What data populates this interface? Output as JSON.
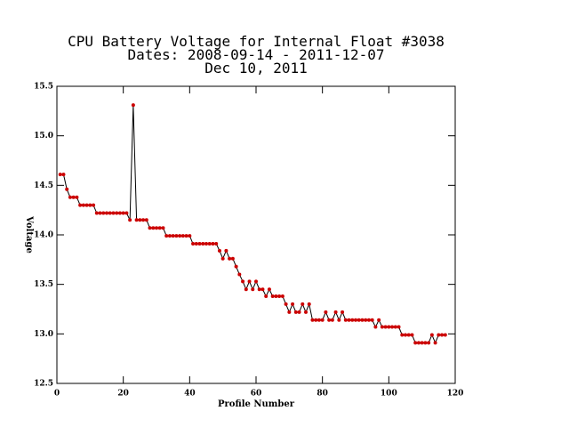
{
  "chart_data": {
    "type": "line",
    "title": [
      "CPU Battery Voltage for Internal Float #3038",
      "Dates:  2008-09-14 -  2011-12-07",
      "Dec 10, 2011"
    ],
    "x_label": "Profile Number",
    "y_label": "Voltage",
    "x": [
      1,
      2,
      3,
      4,
      5,
      6,
      7,
      8,
      9,
      10,
      11,
      12,
      13,
      14,
      15,
      16,
      17,
      18,
      19,
      20,
      21,
      22,
      23,
      24,
      25,
      26,
      27,
      28,
      29,
      30,
      31,
      32,
      33,
      34,
      35,
      36,
      37,
      38,
      39,
      40,
      41,
      42,
      43,
      44,
      45,
      46,
      47,
      48,
      49,
      50,
      51,
      52,
      53,
      54,
      55,
      56,
      57,
      58,
      59,
      60,
      61,
      62,
      63,
      64,
      65,
      66,
      67,
      68,
      69,
      70,
      71,
      72,
      73,
      74,
      75,
      76,
      77,
      78,
      79,
      80,
      81,
      82,
      83,
      84,
      85,
      86,
      87,
      88,
      89,
      90,
      91,
      92,
      93,
      94,
      95,
      96,
      97,
      98,
      99,
      100,
      101,
      102,
      103,
      104,
      105,
      106,
      107,
      108,
      109,
      110,
      111,
      112,
      113,
      114,
      115,
      116,
      117
    ],
    "values": [
      14.61,
      14.61,
      14.46,
      14.38,
      14.38,
      14.38,
      14.3,
      14.3,
      14.3,
      14.3,
      14.3,
      14.22,
      14.22,
      14.22,
      14.22,
      14.22,
      14.22,
      14.22,
      14.22,
      14.22,
      14.22,
      14.15,
      15.31,
      14.15,
      14.15,
      14.15,
      14.15,
      14.07,
      14.07,
      14.07,
      14.07,
      14.07,
      13.99,
      13.99,
      13.99,
      13.99,
      13.99,
      13.99,
      13.99,
      13.99,
      13.91,
      13.91,
      13.91,
      13.91,
      13.91,
      13.91,
      13.91,
      13.91,
      13.84,
      13.76,
      13.84,
      13.76,
      13.76,
      13.68,
      13.6,
      13.53,
      13.45,
      13.53,
      13.45,
      13.53,
      13.45,
      13.45,
      13.38,
      13.45,
      13.38,
      13.38,
      13.38,
      13.38,
      13.3,
      13.22,
      13.3,
      13.22,
      13.22,
      13.3,
      13.22,
      13.3,
      13.14,
      13.14,
      13.14,
      13.14,
      13.22,
      13.14,
      13.14,
      13.22,
      13.14,
      13.22,
      13.14,
      13.14,
      13.14,
      13.14,
      13.14,
      13.14,
      13.14,
      13.14,
      13.14,
      13.07,
      13.14,
      13.07,
      13.07,
      13.07,
      13.07,
      13.07,
      13.07,
      12.99,
      12.99,
      12.99,
      12.99,
      12.91,
      12.91,
      12.91,
      12.91,
      12.91,
      12.99,
      12.91,
      12.99,
      12.99,
      12.99
    ],
    "line_color": "#000000",
    "marker_color": "#cc0000",
    "xlim": [
      0,
      120
    ],
    "xticks": [
      0,
      20,
      40,
      60,
      80,
      100,
      120
    ],
    "ylim": [
      12.5,
      15.5
    ],
    "yticks": [
      12.5,
      {
        "value": 13,
        "label": "13.0"
      },
      13.5,
      {
        "value": 14,
        "label": "14.0"
      },
      14.5,
      {
        "value": 15,
        "label": "15.0"
      },
      15.5
    ]
  }
}
